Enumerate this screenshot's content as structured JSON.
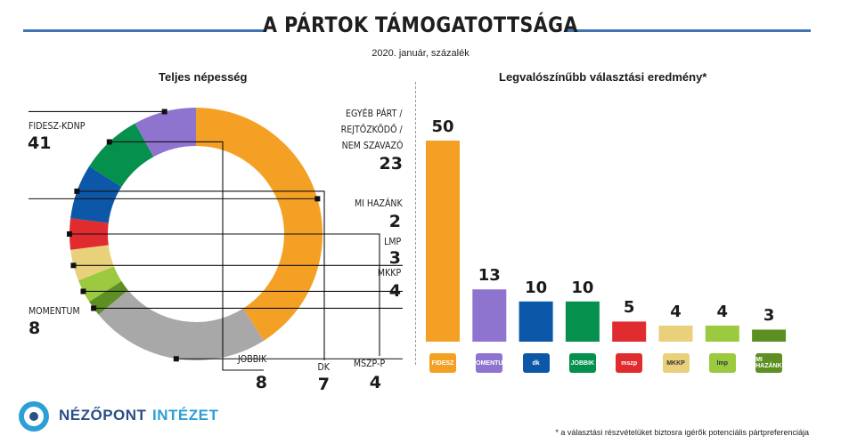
{
  "header": {
    "title": "A PÁRTOK TÁMOGATOTTSÁGA",
    "subtitle": "2020. január, százalék"
  },
  "colors": {
    "fidesz": "#F4A024",
    "other": "#A8A8A8",
    "mihazank": "#5E8F22",
    "lmp": "#9BC93F",
    "mkkp": "#E9D07A",
    "mszp": "#E02B2F",
    "dk": "#0D57A8",
    "jobbik": "#05904E",
    "momentum": "#8E74CF",
    "accent": "#3F74B5"
  },
  "chart_data": [
    {
      "type": "pie",
      "title": "Teljes népesség",
      "slices": [
        {
          "key": "fidesz",
          "label": "FIDESZ-KDNP",
          "value": 41
        },
        {
          "key": "other",
          "label": "EGYÉB PÁRT / REJTŐZKÖDŐ / NEM SZAVAZÓ",
          "value": 23
        },
        {
          "key": "mihazank",
          "label": "MI HAZÁNK",
          "value": 2
        },
        {
          "key": "lmp",
          "label": "LMP",
          "value": 3
        },
        {
          "key": "mkkp",
          "label": "MKKP",
          "value": 4
        },
        {
          "key": "mszp",
          "label": "MSZP-P",
          "value": 4
        },
        {
          "key": "dk",
          "label": "DK",
          "value": 7
        },
        {
          "key": "jobbik",
          "label": "JOBBIK",
          "value": 8
        },
        {
          "key": "momentum",
          "label": "MOMENTUM",
          "value": 8
        }
      ]
    },
    {
      "type": "bar",
      "title": "Legvalószínűbb választási eredmény*",
      "categories": [
        "fidesz",
        "momentum",
        "dk",
        "jobbik",
        "mszp",
        "mkkp",
        "lmp",
        "mihazank"
      ],
      "values": [
        50,
        13,
        10,
        10,
        5,
        4,
        4,
        3
      ],
      "ylim": [
        0,
        50
      ]
    }
  ],
  "pie_labels": {
    "fidesz": {
      "name": "FIDESZ-KDNP",
      "value": "41"
    },
    "other": {
      "line1": "EGYÉB PÁRT /",
      "line2": "REJTŐZKÖDŐ /",
      "line3": "NEM SZAVAZÓ",
      "value": "23"
    },
    "mihazank": {
      "name": "MI HAZÁNK",
      "value": "2"
    },
    "lmp": {
      "name": "LMP",
      "value": "3"
    },
    "mkkp": {
      "name": "MKKP",
      "value": "4"
    },
    "mszp": {
      "name": "MSZP-P",
      "value": "4"
    },
    "dk": {
      "name": "DK",
      "value": "7"
    },
    "jobbik": {
      "name": "JOBBIK",
      "value": "8"
    },
    "momentum": {
      "name": "MOMENTUM",
      "value": "8"
    }
  },
  "bar_logos": [
    "FIDESZ",
    "MOMENTUM",
    "dk",
    "JOBBIK",
    "mszp",
    "MKKP",
    "lmp",
    "MI HAZÁNK"
  ],
  "footer": {
    "logo_word1": "NÉZŐPONT",
    "logo_word2": "INTÉZET",
    "footnote": "* a választási részvételüket biztosra igérők potenciális pártpreferenciája"
  }
}
